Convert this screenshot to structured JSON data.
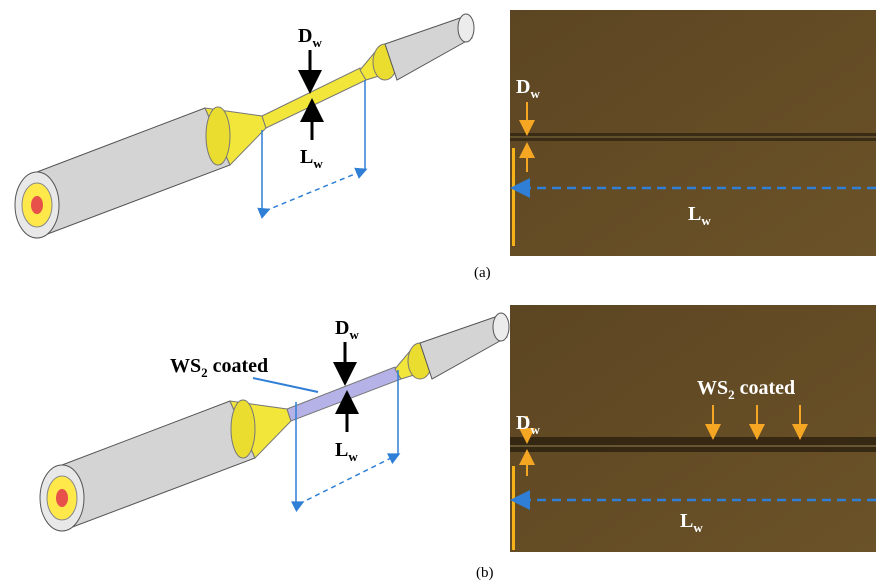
{
  "panels": [
    {
      "label": "(a)",
      "schematic": {
        "diameter": {
          "symbol": "D",
          "subscript": "w"
        },
        "length": {
          "symbol": "L",
          "subscript": "w"
        }
      },
      "micrograph": {
        "diameter": {
          "symbol": "D",
          "subscript": "w"
        },
        "length": {
          "symbol": "L",
          "subscript": "w"
        }
      }
    },
    {
      "label": "(b)",
      "schematic": {
        "diameter": {
          "symbol": "D",
          "subscript": "w"
        },
        "length": {
          "symbol": "L",
          "subscript": "w"
        },
        "coating": {
          "prefix": "WS",
          "subscript": "2",
          "suffix": "coated"
        }
      },
      "micrograph": {
        "diameter": {
          "symbol": "D",
          "subscript": "w"
        },
        "length": {
          "symbol": "L",
          "subscript": "w"
        },
        "coating": {
          "prefix": "WS",
          "subscript": "2",
          "suffix": "coated"
        }
      }
    }
  ]
}
